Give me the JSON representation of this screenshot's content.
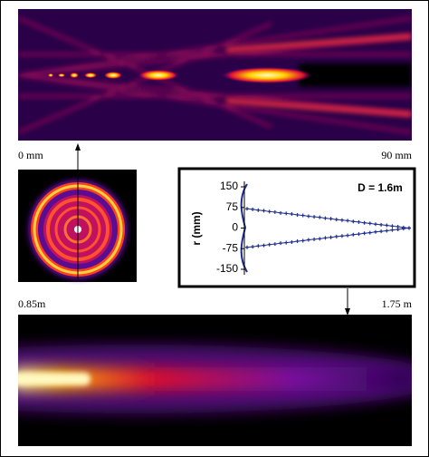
{
  "labels": {
    "top_left": "0 mm",
    "top_right": "90 mm",
    "bottom_left": "0.85m",
    "bottom_right": "1.75 m"
  },
  "chart_data": {
    "type": "line",
    "y_label": "r (mm)",
    "annotation": "D = 1.6m",
    "categories": [
      null,
      null,
      null,
      null,
      null,
      null,
      null,
      null,
      null,
      null,
      null,
      null,
      null,
      null,
      null,
      null,
      null,
      null,
      null,
      null,
      null,
      null,
      null,
      null,
      null,
      null,
      null,
      null,
      null,
      null
    ],
    "series": [
      {
        "color": "#1f2f8f",
        "values": [
          70,
          68,
          65,
          63,
          60,
          58,
          55,
          53,
          51,
          48,
          46,
          43,
          41,
          39,
          36,
          34,
          31,
          29,
          27,
          24,
          22,
          19,
          17,
          14,
          12,
          10,
          7,
          5,
          2,
          0
        ]
      },
      {
        "color": "#1f2f8f",
        "values": [
          -70,
          -68,
          -65,
          -63,
          -60,
          -58,
          -55,
          -53,
          -51,
          -48,
          -46,
          -43,
          -41,
          -39,
          -36,
          -34,
          -31,
          -29,
          -27,
          -24,
          -22,
          -19,
          -17,
          -14,
          -12,
          -10,
          -7,
          -5,
          -2,
          0
        ]
      }
    ],
    "ylim": [
      -160,
      160
    ],
    "yticks": [
      150,
      75,
      0,
      -75,
      -150
    ]
  }
}
